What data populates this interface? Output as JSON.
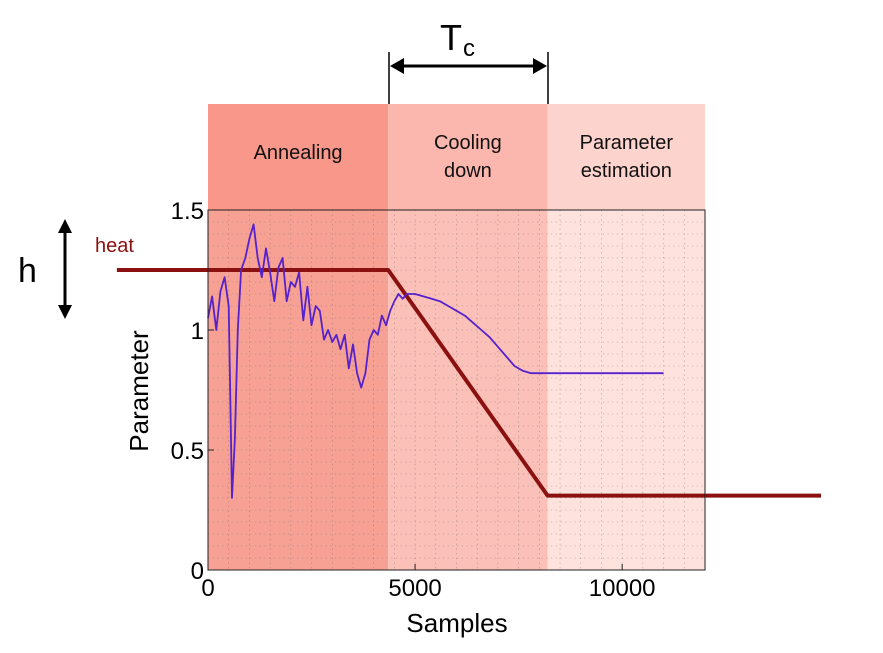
{
  "chart_data": {
    "type": "line",
    "xlabel": "Samples",
    "ylabel": "Parameter",
    "xlim": [
      0,
      12000
    ],
    "ylim": [
      0,
      1.5
    ],
    "x_ticks": [
      "0",
      "5000",
      "10000"
    ],
    "x_tick_values": [
      0,
      5000,
      10000
    ],
    "y_ticks": [
      "0",
      "0.5",
      "1",
      "1.5"
    ],
    "y_tick_values": [
      0,
      0.5,
      1,
      1.5
    ],
    "grid": true,
    "phases": [
      {
        "label_lines": [
          "Annealing"
        ],
        "x_start": 0,
        "x_end": 4350,
        "color": "#f7a195",
        "band_color": "#f8978a"
      },
      {
        "label_lines": [
          "Cooling",
          "down"
        ],
        "x_start": 4350,
        "x_end": 8200,
        "color": "#fbc0b8",
        "band_color": "#fbb6ad"
      },
      {
        "label_lines": [
          "Parameter",
          "estimation"
        ],
        "x_start": 8200,
        "x_end": 12000,
        "color": "#fde2de",
        "band_color": "#fcd3cd"
      }
    ],
    "annotations": {
      "tc_label": "T",
      "tc_sub": "c",
      "h_label": "h",
      "heat_label": "heat"
    },
    "series": [
      {
        "name": "heat",
        "color": "#8b1010",
        "x": [
          -2200,
          4350,
          8200,
          14800
        ],
        "y": [
          1.25,
          1.25,
          0.31,
          0.31
        ]
      },
      {
        "color": "#5522cc",
        "x": [
          0,
          100,
          200,
          300,
          400,
          500,
          580,
          650,
          720,
          800,
          900,
          1000,
          1100,
          1200,
          1300,
          1400,
          1500,
          1600,
          1700,
          1800,
          1900,
          2000,
          2100,
          2200,
          2300,
          2400,
          2500,
          2600,
          2700,
          2800,
          2900,
          3000,
          3100,
          3200,
          3300,
          3400,
          3500,
          3600,
          3700,
          3800,
          3900,
          4000,
          4100,
          4200,
          4300,
          4400,
          4500,
          4600,
          4700,
          4800,
          5000,
          5200,
          5400,
          5600,
          5800,
          6000,
          6200,
          6400,
          6600,
          6800,
          7000,
          7200,
          7400,
          7600,
          7800,
          8000,
          8200,
          8500,
          9000,
          9500,
          10000,
          10500,
          11000
        ],
        "y": [
          1.05,
          1.14,
          1.0,
          1.16,
          1.22,
          1.1,
          0.3,
          0.55,
          1.0,
          1.25,
          1.3,
          1.38,
          1.44,
          1.3,
          1.22,
          1.34,
          1.24,
          1.12,
          1.26,
          1.3,
          1.12,
          1.2,
          1.18,
          1.24,
          1.04,
          1.18,
          1.02,
          1.1,
          1.08,
          0.96,
          1.0,
          0.95,
          0.98,
          0.92,
          0.98,
          0.84,
          0.94,
          0.82,
          0.76,
          0.82,
          0.96,
          1.0,
          0.98,
          1.06,
          1.02,
          1.08,
          1.12,
          1.15,
          1.13,
          1.15,
          1.15,
          1.14,
          1.13,
          1.12,
          1.1,
          1.08,
          1.06,
          1.03,
          1.0,
          0.97,
          0.93,
          0.89,
          0.85,
          0.83,
          0.82,
          0.82,
          0.82,
          0.82,
          0.82,
          0.82,
          0.82,
          0.82,
          0.82
        ]
      }
    ]
  }
}
